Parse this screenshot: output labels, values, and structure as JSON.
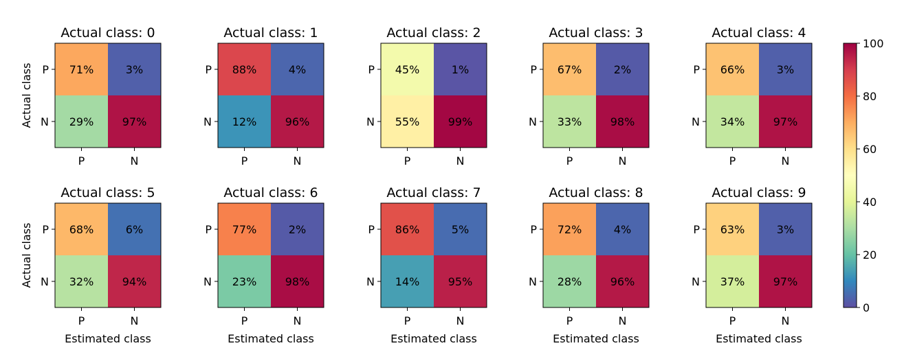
{
  "chart_data": {
    "type": "heatmap",
    "subtitle_prefix": "Actual class: ",
    "ylabel": "Actual class",
    "xlabel": "Estimated class",
    "row_labels": [
      "P",
      "N"
    ],
    "col_labels": [
      "P",
      "N"
    ],
    "value_suffix": "%",
    "colormap": "Spectral_r",
    "colorbar": {
      "min": 0,
      "max": 100,
      "ticks": [
        0,
        20,
        40,
        60,
        80,
        100
      ]
    },
    "panels": [
      {
        "title_value": "0",
        "values": [
          [
            71,
            3
          ],
          [
            29,
            97
          ]
        ]
      },
      {
        "title_value": "1",
        "values": [
          [
            88,
            4
          ],
          [
            12,
            96
          ]
        ]
      },
      {
        "title_value": "2",
        "values": [
          [
            45,
            1
          ],
          [
            55,
            99
          ]
        ]
      },
      {
        "title_value": "3",
        "values": [
          [
            67,
            2
          ],
          [
            33,
            98
          ]
        ]
      },
      {
        "title_value": "4",
        "values": [
          [
            66,
            3
          ],
          [
            34,
            97
          ]
        ]
      },
      {
        "title_value": "5",
        "values": [
          [
            68,
            6
          ],
          [
            32,
            94
          ]
        ]
      },
      {
        "title_value": "6",
        "values": [
          [
            77,
            2
          ],
          [
            23,
            98
          ]
        ]
      },
      {
        "title_value": "7",
        "values": [
          [
            86,
            5
          ],
          [
            14,
            95
          ]
        ]
      },
      {
        "title_value": "8",
        "values": [
          [
            72,
            4
          ],
          [
            28,
            96
          ]
        ]
      },
      {
        "title_value": "9",
        "values": [
          [
            63,
            3
          ],
          [
            37,
            97
          ]
        ]
      }
    ]
  }
}
